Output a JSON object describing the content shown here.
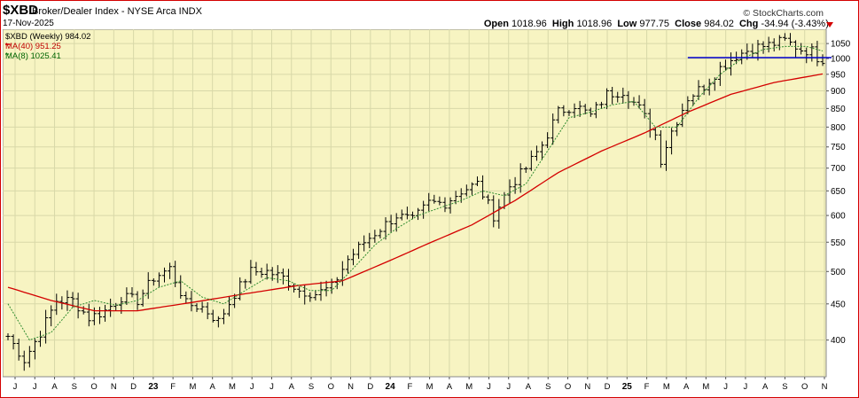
{
  "header": {
    "symbol": "$XBD",
    "name": "Broker/Dealer Index - NYSE Arca INDX",
    "date": "17-Nov-2025",
    "brand": "© StockCharts.com",
    "open_label": "Open",
    "open_value": "1018.96",
    "high_label": "High",
    "high_value": "1018.96",
    "low_label": "Low",
    "low_value": "977.75",
    "close_label": "Close",
    "close_value": "984.02",
    "chg_label": "Chg",
    "chg_value": "-34.94 (-3.43%)"
  },
  "legend": {
    "price": "$XBD (Weekly) 984.02",
    "ma40": "MA(40) 951.25",
    "ma8": "MA(8) 1025.41"
  },
  "colors": {
    "plot_bg": "#f7f4c2",
    "grid": "#d8d8a8",
    "bars": "#000000",
    "ma40": "#d40000",
    "ma8": "#2e8b2e",
    "hline": "#0000cc",
    "border": "#d40000"
  },
  "chart_data": {
    "type": "line",
    "scale": "log",
    "ylim": [
      355,
      1100
    ],
    "y_ticks": [
      400,
      450,
      500,
      550,
      600,
      650,
      700,
      750,
      800,
      850,
      900,
      950,
      1000,
      1050
    ],
    "x_months": [
      "J",
      "J",
      "A",
      "S",
      "O",
      "N",
      "D",
      "23",
      "F",
      "M",
      "A",
      "M",
      "J",
      "J",
      "A",
      "S",
      "O",
      "N",
      "D",
      "24",
      "F",
      "M",
      "A",
      "M",
      "J",
      "J",
      "A",
      "S",
      "O",
      "N",
      "D",
      "25",
      "F",
      "M",
      "A",
      "M",
      "J",
      "J",
      "A",
      "S",
      "O",
      "N"
    ],
    "horizontal_line": {
      "value": 1003,
      "color": "#0000cc"
    },
    "close_anchors": [
      [
        0,
        405
      ],
      [
        3,
        375
      ],
      [
        6,
        410
      ],
      [
        9,
        455
      ],
      [
        12,
        455
      ],
      [
        15,
        430
      ],
      [
        18,
        440
      ],
      [
        21,
        460
      ],
      [
        24,
        455
      ],
      [
        27,
        490
      ],
      [
        30,
        505
      ],
      [
        33,
        450
      ],
      [
        36,
        445
      ],
      [
        39,
        425
      ],
      [
        42,
        465
      ],
      [
        45,
        500
      ],
      [
        48,
        500
      ],
      [
        51,
        490
      ],
      [
        54,
        470
      ],
      [
        57,
        465
      ],
      [
        60,
        475
      ],
      [
        63,
        520
      ],
      [
        66,
        550
      ],
      [
        69,
        575
      ],
      [
        72,
        600
      ],
      [
        75,
        590
      ],
      [
        78,
        625
      ],
      [
        81,
        625
      ],
      [
        84,
        650
      ],
      [
        87,
        665
      ],
      [
        90,
        600
      ],
      [
        93,
        660
      ],
      [
        96,
        700
      ],
      [
        99,
        755
      ],
      [
        102,
        840
      ],
      [
        105,
        860
      ],
      [
        108,
        830
      ],
      [
        111,
        890
      ],
      [
        114,
        900
      ],
      [
        117,
        850
      ],
      [
        120,
        780
      ],
      [
        121,
        720
      ],
      [
        123,
        790
      ],
      [
        126,
        880
      ],
      [
        129,
        915
      ],
      [
        132,
        970
      ],
      [
        135,
        1010
      ],
      [
        138,
        1035
      ],
      [
        141,
        1045
      ],
      [
        144,
        1060
      ],
      [
        147,
        1030
      ],
      [
        149,
        1025
      ],
      [
        151,
        984
      ]
    ],
    "ma40_anchors": [
      [
        0,
        475
      ],
      [
        8,
        455
      ],
      [
        16,
        440
      ],
      [
        24,
        440
      ],
      [
        34,
        452
      ],
      [
        44,
        465
      ],
      [
        54,
        478
      ],
      [
        62,
        485
      ],
      [
        70,
        515
      ],
      [
        78,
        548
      ],
      [
        86,
        582
      ],
      [
        94,
        630
      ],
      [
        102,
        690
      ],
      [
        110,
        740
      ],
      [
        118,
        785
      ],
      [
        126,
        840
      ],
      [
        134,
        890
      ],
      [
        142,
        925
      ],
      [
        151,
        951
      ]
    ],
    "ma8_anchors": [
      [
        0,
        450
      ],
      [
        4,
        400
      ],
      [
        8,
        410
      ],
      [
        12,
        445
      ],
      [
        16,
        455
      ],
      [
        20,
        448
      ],
      [
        24,
        455
      ],
      [
        28,
        475
      ],
      [
        32,
        485
      ],
      [
        36,
        460
      ],
      [
        40,
        450
      ],
      [
        44,
        470
      ],
      [
        48,
        490
      ],
      [
        52,
        485
      ],
      [
        56,
        470
      ],
      [
        60,
        470
      ],
      [
        64,
        505
      ],
      [
        68,
        545
      ],
      [
        72,
        575
      ],
      [
        76,
        600
      ],
      [
        80,
        615
      ],
      [
        84,
        630
      ],
      [
        88,
        650
      ],
      [
        92,
        640
      ],
      [
        96,
        665
      ],
      [
        100,
        740
      ],
      [
        104,
        825
      ],
      [
        108,
        840
      ],
      [
        112,
        860
      ],
      [
        116,
        870
      ],
      [
        120,
        800
      ],
      [
        124,
        800
      ],
      [
        128,
        880
      ],
      [
        132,
        950
      ],
      [
        136,
        1000
      ],
      [
        140,
        1030
      ],
      [
        144,
        1040
      ],
      [
        148,
        1040
      ],
      [
        151,
        1025
      ]
    ]
  }
}
